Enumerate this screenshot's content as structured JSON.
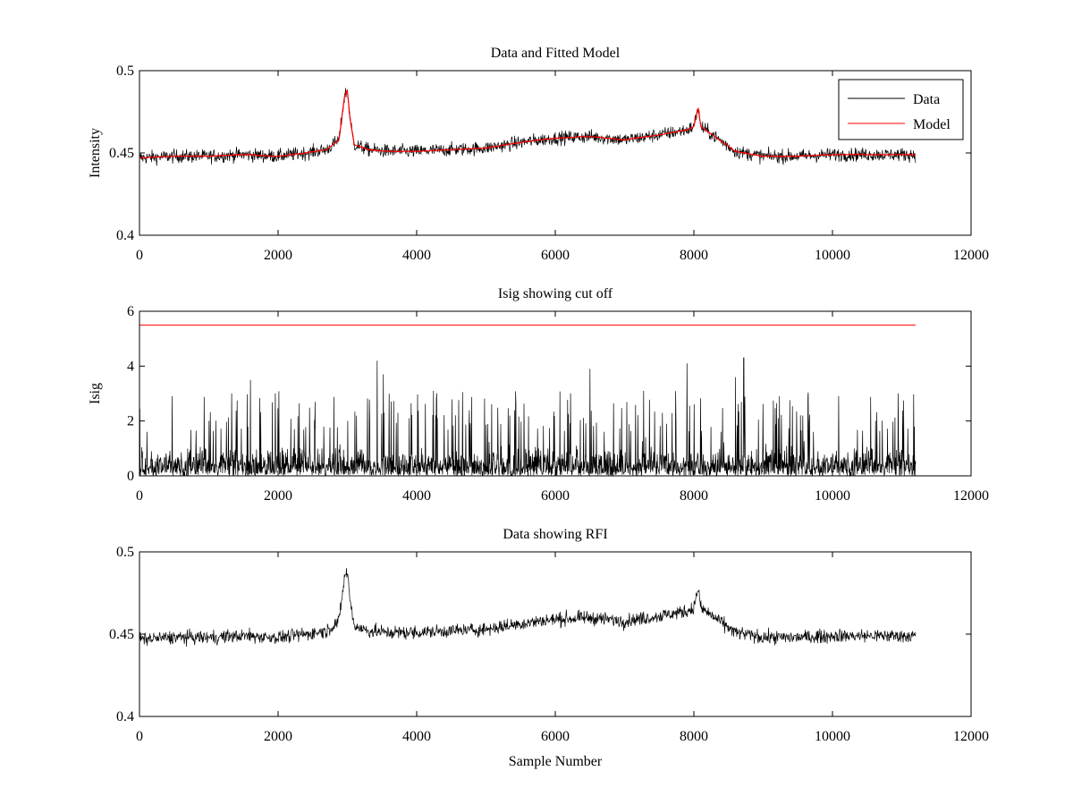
{
  "chart_data": [
    {
      "type": "line",
      "title": "Data and Fitted Model",
      "xlabel": "",
      "ylabel": "Intensity",
      "xlim": [
        0,
        12000
      ],
      "ylim": [
        0.4,
        0.5
      ],
      "xticks": [
        0,
        2000,
        4000,
        6000,
        8000,
        10000,
        12000
      ],
      "xtick_labels": [
        "0",
        "2000",
        "4000",
        "6000",
        "8000",
        "10000",
        "12000"
      ],
      "yticks": [
        0.4,
        0.45,
        0.5
      ],
      "ytick_labels": [
        "0.4",
        "0.45",
        "0.5"
      ],
      "legend": {
        "position": "top-right",
        "entries": [
          "Data",
          "Model"
        ]
      },
      "x_extent": [
        0,
        11200
      ],
      "noise_halfwidth": 0.007,
      "series": [
        {
          "name": "Data",
          "color": "#000000",
          "style": "noisy",
          "x": [
            0,
            500,
            1000,
            1500,
            2000,
            2400,
            2700,
            2880,
            2960,
            3000,
            3040,
            3100,
            3300,
            3600,
            4000,
            5000,
            5600,
            6000,
            6500,
            7000,
            7500,
            7900,
            8000,
            8060,
            8100,
            8300,
            8600,
            9000,
            9500,
            10000,
            10500,
            11200
          ],
          "values": [
            0.447,
            0.448,
            0.448,
            0.449,
            0.448,
            0.45,
            0.452,
            0.458,
            0.485,
            0.488,
            0.47,
            0.455,
            0.452,
            0.451,
            0.451,
            0.453,
            0.457,
            0.459,
            0.46,
            0.458,
            0.461,
            0.464,
            0.466,
            0.478,
            0.466,
            0.46,
            0.451,
            0.448,
            0.448,
            0.449,
            0.449,
            0.449
          ]
        },
        {
          "name": "Model",
          "color": "#ff0000",
          "style": "smooth",
          "x": [
            0,
            500,
            1000,
            1500,
            2000,
            2400,
            2700,
            2880,
            2960,
            3000,
            3040,
            3100,
            3300,
            3600,
            4000,
            5000,
            5600,
            6000,
            6500,
            7000,
            7500,
            7900,
            8000,
            8060,
            8100,
            8300,
            8600,
            9000,
            9500,
            10000,
            10500,
            11200
          ],
          "values": [
            0.447,
            0.448,
            0.448,
            0.449,
            0.448,
            0.45,
            0.452,
            0.458,
            0.485,
            0.488,
            0.47,
            0.455,
            0.452,
            0.451,
            0.451,
            0.453,
            0.457,
            0.459,
            0.46,
            0.458,
            0.461,
            0.464,
            0.466,
            0.478,
            0.466,
            0.46,
            0.451,
            0.448,
            0.448,
            0.449,
            0.449,
            0.449
          ]
        }
      ]
    },
    {
      "type": "line",
      "title": "Isig showing cut off",
      "xlabel": "",
      "ylabel": "Isig",
      "xlim": [
        0,
        12000
      ],
      "ylim": [
        0,
        6
      ],
      "xticks": [
        0,
        2000,
        4000,
        6000,
        8000,
        10000,
        12000
      ],
      "xtick_labels": [
        "0",
        "2000",
        "4000",
        "6000",
        "8000",
        "10000",
        "12000"
      ],
      "yticks": [
        0,
        2,
        4,
        6
      ],
      "ytick_labels": [
        "0",
        "2",
        "4",
        "6"
      ],
      "x_extent": [
        0,
        11200
      ],
      "series": [
        {
          "style": "spiky",
          "color": "#000000",
          "typical_max": 1.4,
          "spikes": [
            {
              "x": 1600,
              "y": 3.5
            },
            {
              "x": 3430,
              "y": 4.2
            },
            {
              "x": 3520,
              "y": 3.7
            },
            {
              "x": 6500,
              "y": 3.9
            },
            {
              "x": 7900,
              "y": 4.1
            },
            {
              "x": 8720,
              "y": 4.3
            },
            {
              "x": 8600,
              "y": 3.6
            }
          ]
        },
        {
          "style": "flat",
          "color": "#ff0000",
          "x": [
            0,
            11200
          ],
          "values": [
            5.5,
            5.5
          ]
        }
      ]
    },
    {
      "type": "line",
      "title": "Data showing RFI",
      "xlabel": "Sample Number",
      "ylabel": "",
      "xlim": [
        0,
        12000
      ],
      "ylim": [
        0.4,
        0.5
      ],
      "xticks": [
        0,
        2000,
        4000,
        6000,
        8000,
        10000,
        12000
      ],
      "xtick_labels": [
        "0",
        "2000",
        "4000",
        "6000",
        "8000",
        "10000",
        "12000"
      ],
      "yticks": [
        0.4,
        0.45,
        0.5
      ],
      "ytick_labels": [
        "0.4",
        "0.45",
        "0.5"
      ],
      "x_extent": [
        0,
        11200
      ],
      "noise_halfwidth": 0.007,
      "series": [
        {
          "color": "#000000",
          "style": "noisy",
          "x": [
            0,
            500,
            1000,
            1500,
            2000,
            2400,
            2700,
            2880,
            2960,
            3000,
            3040,
            3100,
            3300,
            3600,
            4000,
            5000,
            5600,
            6000,
            6500,
            7000,
            7500,
            7900,
            8000,
            8060,
            8100,
            8300,
            8600,
            9000,
            9500,
            10000,
            10500,
            11200
          ],
          "values": [
            0.447,
            0.448,
            0.448,
            0.449,
            0.448,
            0.45,
            0.452,
            0.458,
            0.485,
            0.488,
            0.47,
            0.455,
            0.452,
            0.451,
            0.451,
            0.453,
            0.457,
            0.459,
            0.46,
            0.458,
            0.461,
            0.464,
            0.466,
            0.478,
            0.466,
            0.46,
            0.451,
            0.448,
            0.448,
            0.449,
            0.449,
            0.449
          ]
        }
      ]
    }
  ]
}
